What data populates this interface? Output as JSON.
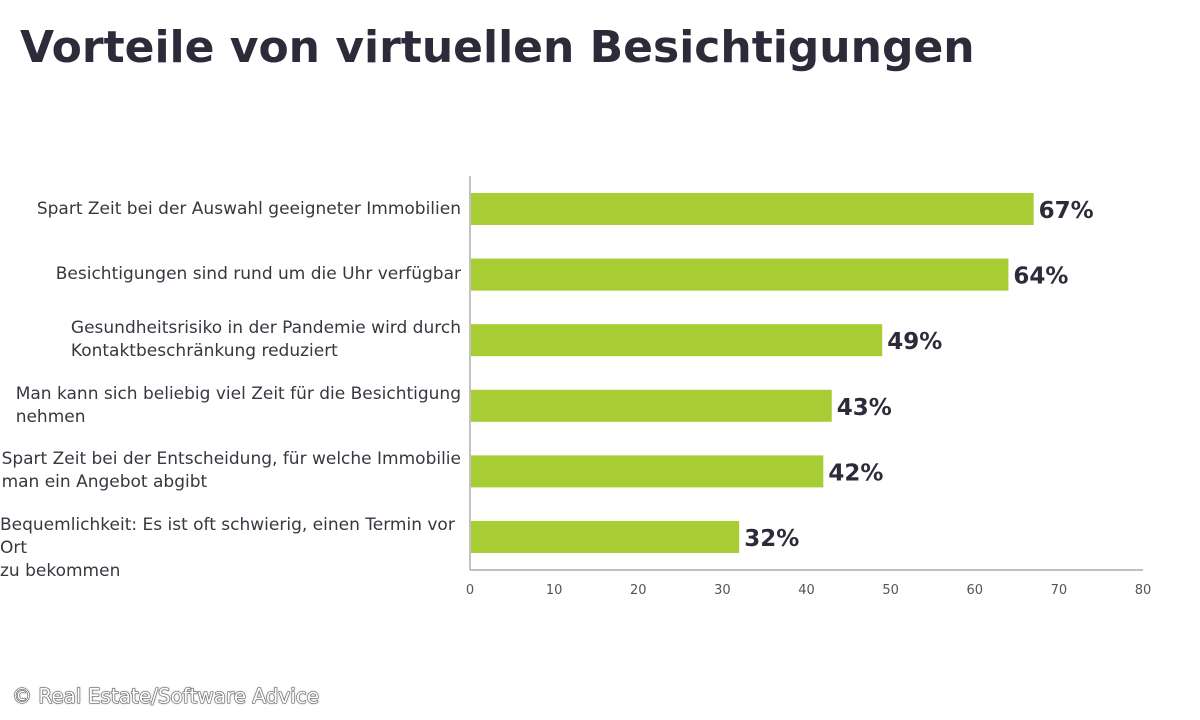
{
  "chart_data": {
    "type": "bar",
    "orientation": "horizontal",
    "title": "Vorteile von virtuellen Besichtigungen",
    "categories": [
      "Spart Zeit bei der Auswahl geeigneter Immobilien",
      "Besichtigungen sind rund um die Uhr verfügbar",
      "Gesundheitsrisiko in der Pandemie wird durch Kontaktbeschränkung reduziert",
      "Man kann sich beliebig viel Zeit für die Besichtigung nehmen",
      "Spart Zeit bei der Entscheidung, für welche Immobilie man ein Angebot abgibt",
      "Bequemlichkeit: Es ist oft schwierig, einen Termin vor Ort zu bekommen"
    ],
    "category_lines": [
      [
        "Spart Zeit bei der Auswahl geeigneter Immobilien"
      ],
      [
        "Besichtigungen sind rund um die Uhr verfügbar"
      ],
      [
        "Gesundheitsrisiko in der Pandemie wird durch",
        "Kontaktbeschränkung reduziert"
      ],
      [
        "Man kann sich beliebig viel Zeit für die Besichtigung",
        "nehmen"
      ],
      [
        "Spart Zeit bei der Entscheidung, für welche Immobilie",
        "man ein Angebot abgibt"
      ],
      [
        "Bequemlichkeit: Es ist oft schwierig, einen Termin vor Ort",
        "zu bekommen"
      ]
    ],
    "values": [
      67,
      64,
      49,
      43,
      42,
      32
    ],
    "data_labels": [
      "67%",
      "64%",
      "49%",
      "43%",
      "42%",
      "32%"
    ],
    "xlim": [
      0,
      80
    ],
    "xticks": [
      0,
      10,
      20,
      30,
      40,
      50,
      60,
      70,
      80
    ],
    "xtick_labels": [
      "0",
      "10",
      "20",
      "30",
      "40",
      "50",
      "60",
      "70",
      "80"
    ],
    "xlabel": "",
    "ylabel": "",
    "grid": false,
    "legend": "none",
    "colors": {
      "bar": "#a8cc34",
      "axis": "#9a9a9a",
      "text": "#2f2a3a",
      "label": "#3a3640",
      "tick": "#555555"
    }
  },
  "credit": "© Real Estate/Software Advice"
}
